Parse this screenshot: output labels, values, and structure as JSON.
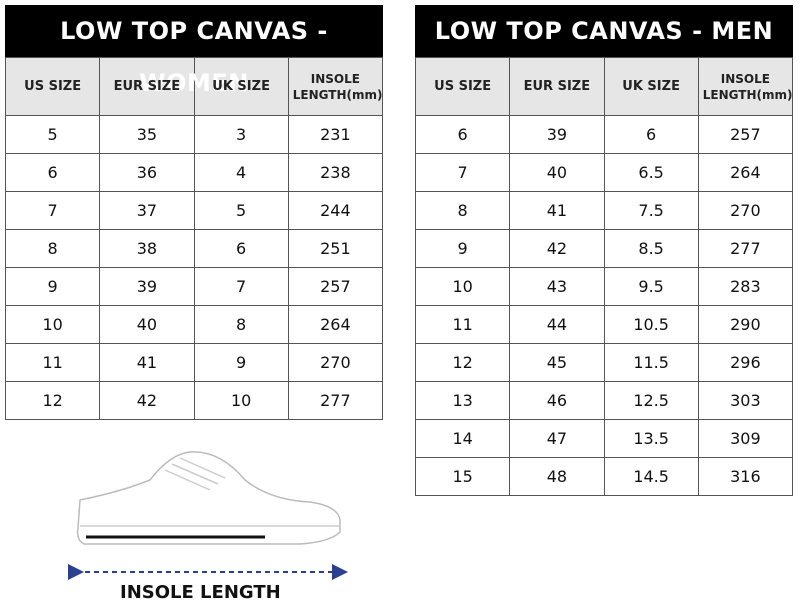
{
  "tables": [
    {
      "title": "LOW TOP CANVAS - WOMEN",
      "columns": [
        "US SIZE",
        "EUR SIZE",
        "UK SIZE",
        "INSOLE LENGTH(mm)"
      ],
      "rows": [
        [
          5,
          35,
          3,
          231
        ],
        [
          6,
          36,
          4,
          238
        ],
        [
          7,
          37,
          5,
          244
        ],
        [
          8,
          38,
          6,
          251
        ],
        [
          9,
          39,
          7,
          257
        ],
        [
          10,
          40,
          8,
          264
        ],
        [
          11,
          41,
          9,
          270
        ],
        [
          12,
          42,
          10,
          277
        ]
      ]
    },
    {
      "title": "LOW TOP CANVAS - MEN",
      "columns": [
        "US SIZE",
        "EUR SIZE",
        "UK SIZE",
        "INSOLE LENGTH(mm)"
      ],
      "rows": [
        [
          6,
          39,
          6,
          257
        ],
        [
          7,
          40,
          6.5,
          264
        ],
        [
          8,
          41,
          7.5,
          270
        ],
        [
          9,
          42,
          8.5,
          277
        ],
        [
          10,
          43,
          9.5,
          283
        ],
        [
          11,
          44,
          10.5,
          290
        ],
        [
          12,
          45,
          11.5,
          296
        ],
        [
          13,
          46,
          12.5,
          303
        ],
        [
          14,
          47,
          13.5,
          309
        ],
        [
          15,
          48,
          14.5,
          316
        ]
      ]
    }
  ],
  "illustration": {
    "label": "INSOLE LENGTH"
  }
}
